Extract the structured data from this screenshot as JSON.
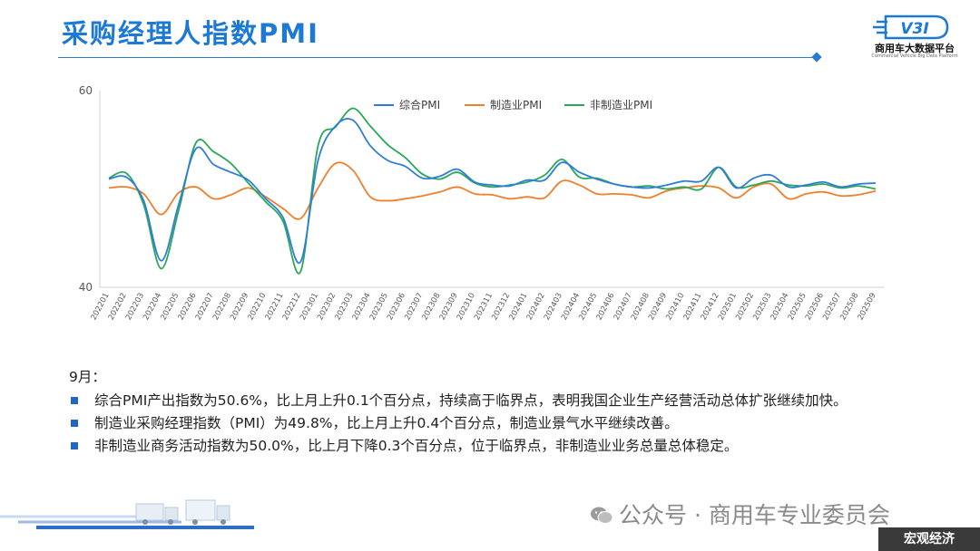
{
  "header": {
    "title": "采购经理人指数PMI",
    "logo_name": "商用车大数据平台",
    "logo_sub": "Commercial Vehicle Big Data Platform",
    "logo_mark": "V3I"
  },
  "chart_data": {
    "type": "line",
    "title": "",
    "xlabel": "",
    "ylabel": "",
    "ylim": [
      40,
      60
    ],
    "y_ticks": [
      40,
      60
    ],
    "legend_position": "top-center",
    "grid": false,
    "categories": [
      "202201",
      "202202",
      "202203",
      "202204",
      "202205",
      "202206",
      "202207",
      "202208",
      "202209",
      "202210",
      "202211",
      "202212",
      "202301",
      "202302",
      "202303",
      "202304",
      "202305",
      "202306",
      "202307",
      "202308",
      "202309",
      "202310",
      "202311",
      "202312",
      "202401",
      "202402",
      "202403",
      "202404",
      "202405",
      "202406",
      "202407",
      "202408",
      "202409",
      "202410",
      "202411",
      "202412",
      "202501",
      "202502",
      "202503",
      "202504",
      "202505",
      "202506",
      "202507",
      "202508",
      "202509"
    ],
    "series": [
      {
        "name": "综合PMI",
        "color": "#2f7ed8",
        "values": [
          51.0,
          51.2,
          48.8,
          42.7,
          48.4,
          54.1,
          52.5,
          51.7,
          50.9,
          49.0,
          47.1,
          42.6,
          52.9,
          56.4,
          57.0,
          54.4,
          52.9,
          52.3,
          51.1,
          51.3,
          52.0,
          50.7,
          50.4,
          50.3,
          50.9,
          50.9,
          52.7,
          51.7,
          51.0,
          50.5,
          50.2,
          50.1,
          50.4,
          50.8,
          50.8,
          52.2,
          50.1,
          51.1,
          51.4,
          50.2,
          50.4,
          50.7,
          50.2,
          50.5,
          50.6
        ]
      },
      {
        "name": "制造业PMI",
        "color": "#f07f2a",
        "values": [
          50.1,
          50.2,
          49.5,
          47.4,
          49.6,
          50.2,
          49.0,
          49.4,
          50.1,
          49.2,
          48.0,
          47.0,
          50.1,
          52.6,
          51.9,
          49.2,
          48.8,
          49.0,
          49.3,
          49.7,
          50.2,
          49.5,
          49.4,
          49.0,
          49.2,
          49.1,
          50.8,
          50.4,
          49.5,
          49.5,
          49.4,
          49.1,
          49.8,
          50.1,
          50.3,
          50.1,
          49.1,
          50.2,
          50.5,
          49.0,
          49.5,
          49.7,
          49.3,
          49.4,
          49.8
        ]
      },
      {
        "name": "非制造业PMI",
        "color": "#2aa85a",
        "values": [
          51.1,
          51.6,
          48.4,
          41.9,
          47.8,
          54.7,
          53.8,
          52.6,
          50.6,
          48.7,
          46.7,
          41.6,
          54.4,
          56.3,
          58.2,
          56.4,
          54.5,
          53.2,
          51.5,
          51.0,
          51.7,
          50.6,
          50.2,
          50.4,
          50.7,
          51.4,
          53.0,
          51.2,
          51.1,
          50.5,
          50.2,
          50.3,
          50.0,
          50.2,
          50.0,
          52.2,
          50.2,
          50.4,
          50.8,
          50.4,
          50.3,
          50.5,
          50.1,
          50.3,
          50.0
        ]
      }
    ]
  },
  "notes": {
    "month": "9月：",
    "items": [
      "综合PMI产出指数为50.6%，比上月上升0.1个百分点，持续高于临界点，表明我国企业生产经营活动总体扩张继续加快。",
      "制造业采购经理指数（PMI）为49.8%，比上月上升0.4个百分点，制造业景气水平继续改善。",
      "非制造业商务活动指数为50.0%，比上月下降0.3个百分点，位于临界点，非制造业业务总量总体稳定。"
    ]
  },
  "footer": {
    "wechat": "公众号 · 商用车专业委员会",
    "tag": "宏观经济"
  }
}
